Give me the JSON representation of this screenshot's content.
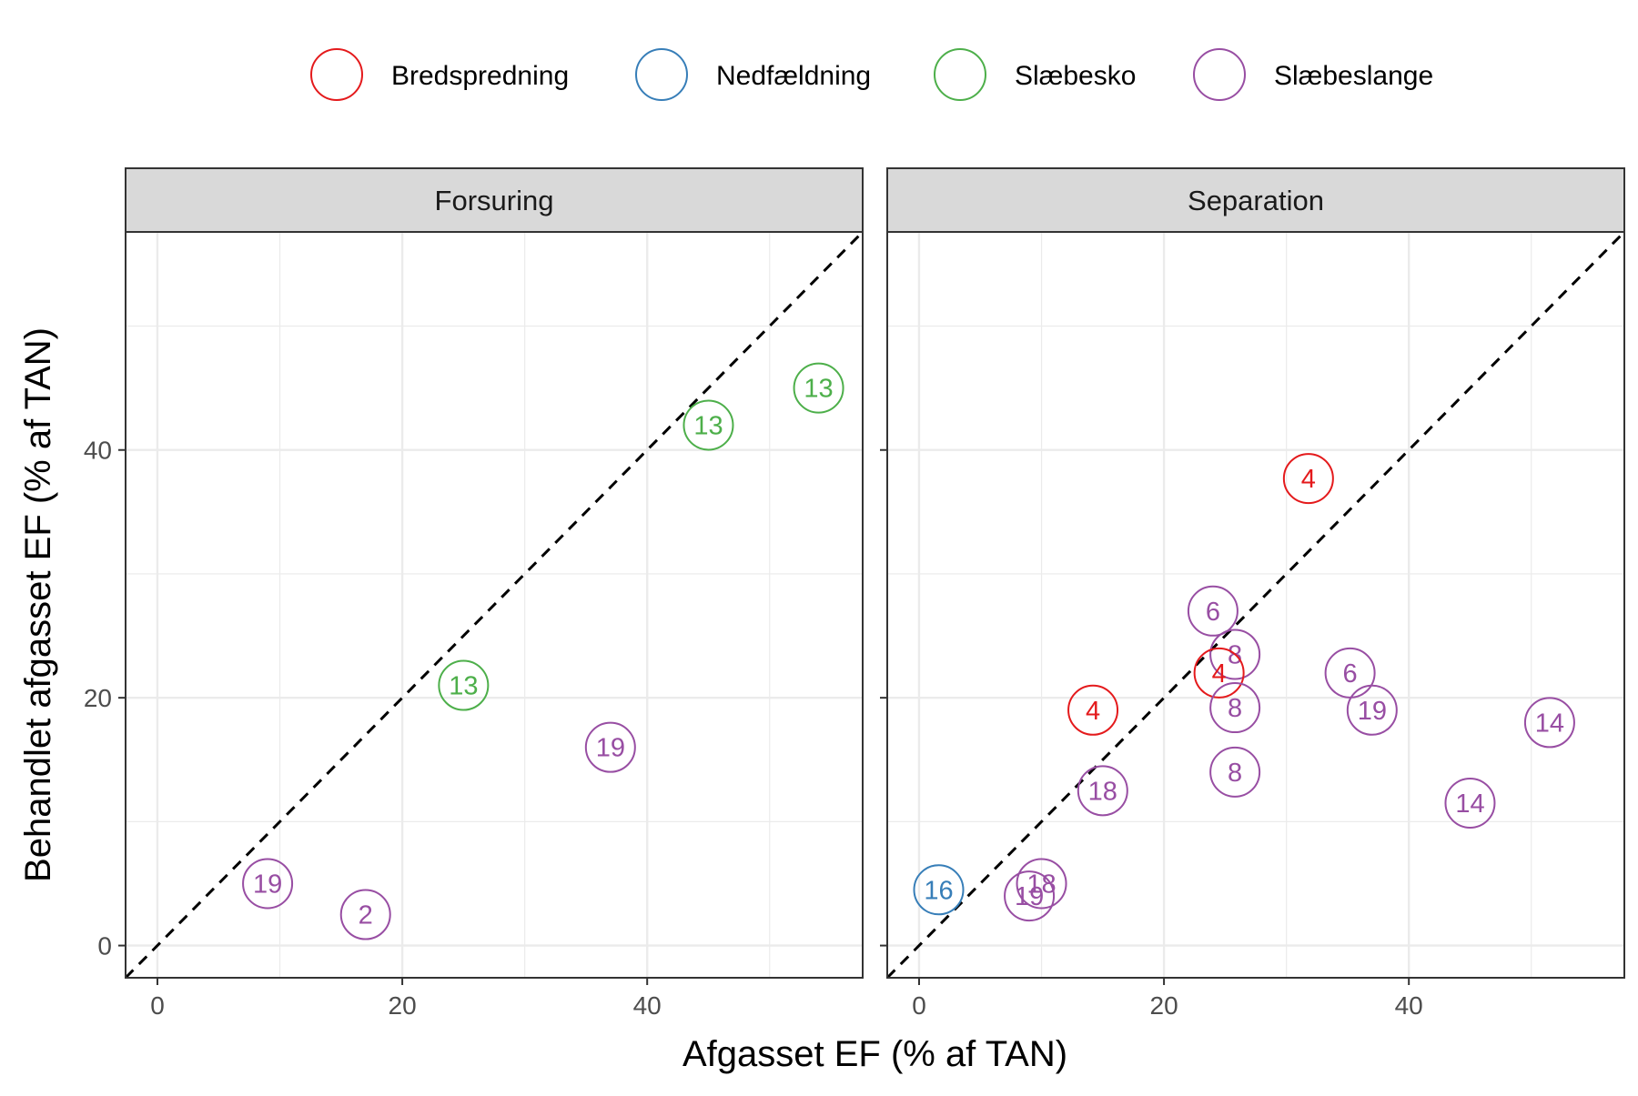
{
  "chart_data": {
    "type": "scatter",
    "xlabel": "Afgasset EF (% af TAN)",
    "ylabel": "Behandlet afgasset EF (% af TAN)",
    "xlim": [
      -2.6,
      57.6
    ],
    "ylim": [
      -2.6,
      57.6
    ],
    "x_ticks": [
      0,
      20,
      40
    ],
    "y_ticks": [
      0,
      20,
      40
    ],
    "grid": true,
    "reference_line": "y = x (dashed)",
    "legend": {
      "position": "top",
      "entries": [
        {
          "name": "Bredspredning",
          "color": "#E41A1C"
        },
        {
          "name": "Nedfældning",
          "color": "#377EB8"
        },
        {
          "name": "Slæbesko",
          "color": "#4DAF4A"
        },
        {
          "name": "Slæbeslange",
          "color": "#984EA3"
        }
      ]
    },
    "panels": [
      {
        "title": "Forsuring",
        "points": [
          {
            "x": 45.0,
            "y": 42.0,
            "label": "13",
            "series": "Slæbesko"
          },
          {
            "x": 54.0,
            "y": 45.0,
            "label": "13",
            "series": "Slæbesko"
          },
          {
            "x": 25.0,
            "y": 21.0,
            "label": "13",
            "series": "Slæbesko"
          },
          {
            "x": 37.0,
            "y": 16.0,
            "label": "19",
            "series": "Slæbeslange"
          },
          {
            "x": 9.0,
            "y": 5.0,
            "label": "19",
            "series": "Slæbeslange"
          },
          {
            "x": 17.0,
            "y": 2.5,
            "label": "2",
            "series": "Slæbeslange"
          }
        ]
      },
      {
        "title": "Separation",
        "points": [
          {
            "x": 31.8,
            "y": 37.7,
            "label": "4",
            "series": "Bredspredning"
          },
          {
            "x": 24.0,
            "y": 27.0,
            "label": "6",
            "series": "Slæbeslange"
          },
          {
            "x": 25.8,
            "y": 23.5,
            "label": "8",
            "series": "Slæbeslange"
          },
          {
            "x": 24.5,
            "y": 22.0,
            "label": "4",
            "series": "Bredspredning"
          },
          {
            "x": 35.2,
            "y": 22.0,
            "label": "6",
            "series": "Slæbeslange"
          },
          {
            "x": 14.2,
            "y": 19.0,
            "label": "4",
            "series": "Bredspredning"
          },
          {
            "x": 25.8,
            "y": 19.2,
            "label": "8",
            "series": "Slæbeslange"
          },
          {
            "x": 37.0,
            "y": 19.0,
            "label": "19",
            "series": "Slæbeslange"
          },
          {
            "x": 51.5,
            "y": 18.0,
            "label": "14",
            "series": "Slæbeslange"
          },
          {
            "x": 25.8,
            "y": 14.0,
            "label": "8",
            "series": "Slæbeslange"
          },
          {
            "x": 15.0,
            "y": 12.5,
            "label": "18",
            "series": "Slæbeslange"
          },
          {
            "x": 45.0,
            "y": 11.5,
            "label": "14",
            "series": "Slæbeslange"
          },
          {
            "x": 1.6,
            "y": 4.5,
            "label": "16",
            "series": "Nedfældning"
          },
          {
            "x": 10.0,
            "y": 5.0,
            "label": "18",
            "series": "Slæbeslange"
          },
          {
            "x": 9.0,
            "y": 4.0,
            "label": "19",
            "series": "Slæbeslange"
          }
        ]
      }
    ]
  }
}
